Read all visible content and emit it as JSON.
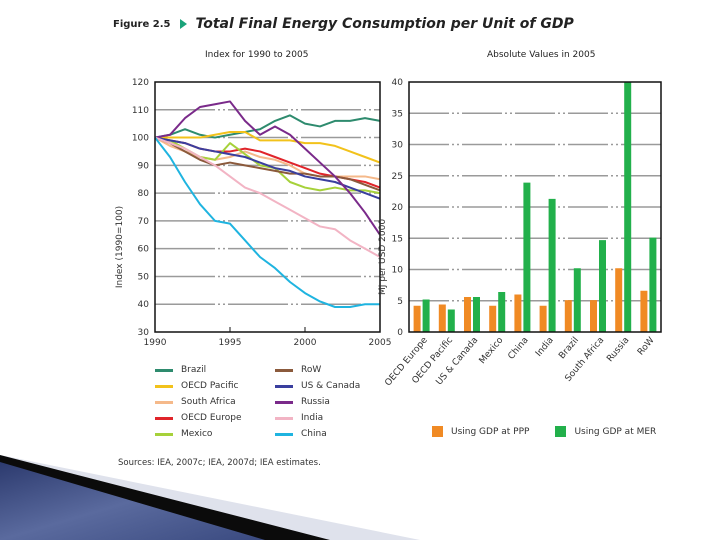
{
  "figure": {
    "number": "Figure 2.5",
    "title": "Total Final Energy Consumption per Unit of GDP",
    "source": "Sources: IEA, 2007c; IEA, 2007d; IEA estimates."
  },
  "colors": {
    "Brazil": "#2e8b6e",
    "OECD Pacific": "#f2c21b",
    "South Africa": "#f5b98a",
    "OECD Europe": "#e0242a",
    "Mexico": "#a6d13a",
    "RoW": "#8b5a3c",
    "US & Canada": "#3a3f9e",
    "Russia": "#7a2a8a",
    "India": "#f2b4c4",
    "China": "#1fb4e0",
    "ppp": "#f08a24",
    "mer": "#22b04b",
    "title_arrow": "#1aa37a"
  },
  "chart_data": [
    {
      "type": "line",
      "title": "Index for 1990 to 2005",
      "xlabel": "",
      "ylabel": "Index (1990=100)",
      "xlim": [
        1990,
        2005
      ],
      "ylim": [
        30,
        120
      ],
      "x_ticks": [
        "1990",
        "1995",
        "2000",
        "2005"
      ],
      "y_ticks": [
        "30",
        "40",
        "50",
        "60",
        "70",
        "80",
        "90",
        "100",
        "110",
        "120"
      ],
      "grid": true,
      "legend_position": "bottom",
      "x": [
        1990,
        1991,
        1992,
        1993,
        1994,
        1995,
        1996,
        1997,
        1998,
        1999,
        2000,
        2001,
        2002,
        2003,
        2004,
        2005
      ],
      "series": [
        {
          "name": "Brazil",
          "values": [
            100,
            101,
            103,
            101,
            100,
            101,
            102,
            103,
            106,
            108,
            105,
            104,
            106,
            106,
            107,
            106
          ]
        },
        {
          "name": "OECD Pacific",
          "values": [
            100,
            100,
            100,
            100,
            101,
            102,
            102,
            99,
            99,
            99,
            98,
            98,
            97,
            95,
            93,
            91
          ]
        },
        {
          "name": "South Africa",
          "values": [
            100,
            97,
            95,
            93,
            92,
            93,
            95,
            93,
            92,
            90,
            87,
            86,
            86,
            86,
            86,
            85
          ]
        },
        {
          "name": "OECD Europe",
          "values": [
            100,
            99,
            98,
            96,
            95,
            95,
            96,
            95,
            93,
            91,
            89,
            87,
            86,
            85,
            84,
            82
          ]
        },
        {
          "name": "Mexico",
          "values": [
            100,
            99,
            96,
            93,
            92,
            98,
            94,
            90,
            89,
            84,
            82,
            81,
            82,
            81,
            81,
            80
          ]
        },
        {
          "name": "RoW",
          "values": [
            100,
            98,
            95,
            92,
            90,
            91,
            90,
            89,
            88,
            87,
            87,
            86,
            86,
            85,
            83,
            81
          ]
        },
        {
          "name": "US & Canada",
          "values": [
            100,
            99,
            98,
            96,
            95,
            94,
            93,
            91,
            89,
            88,
            86,
            85,
            84,
            82,
            80,
            78
          ]
        },
        {
          "name": "Russia",
          "values": [
            100,
            101,
            107,
            111,
            112,
            113,
            106,
            101,
            104,
            101,
            96,
            91,
            86,
            80,
            73,
            65
          ]
        },
        {
          "name": "India",
          "values": [
            100,
            98,
            96,
            93,
            90,
            86,
            82,
            80,
            77,
            74,
            71,
            68,
            67,
            63,
            60,
            57
          ]
        },
        {
          "name": "China",
          "values": [
            100,
            93,
            84,
            76,
            70,
            69,
            63,
            57,
            53,
            48,
            44,
            41,
            39,
            39,
            40,
            40
          ]
        }
      ]
    },
    {
      "type": "bar",
      "title": "Absolute Values in 2005",
      "xlabel": "",
      "ylabel": "MJ per USD 2000",
      "ylim": [
        0,
        40
      ],
      "y_ticks": [
        "0",
        "5",
        "10",
        "15",
        "20",
        "25",
        "30",
        "35",
        "40"
      ],
      "grid": true,
      "legend_position": "bottom",
      "categories": [
        "OECD Europe",
        "OECD Pacific",
        "US & Canada",
        "Mexico",
        "China",
        "India",
        "Brazil",
        "South Africa",
        "Russia",
        "RoW"
      ],
      "series": [
        {
          "name": "Using GDP at PPP",
          "values": [
            4.2,
            4.4,
            5.6,
            4.2,
            6.0,
            4.2,
            5.1,
            5.1,
            10.2,
            6.6
          ]
        },
        {
          "name": "Using GDP at MER",
          "values": [
            5.2,
            3.6,
            5.6,
            6.4,
            23.9,
            21.3,
            10.2,
            14.7,
            40.0,
            15.1
          ]
        }
      ]
    }
  ]
}
